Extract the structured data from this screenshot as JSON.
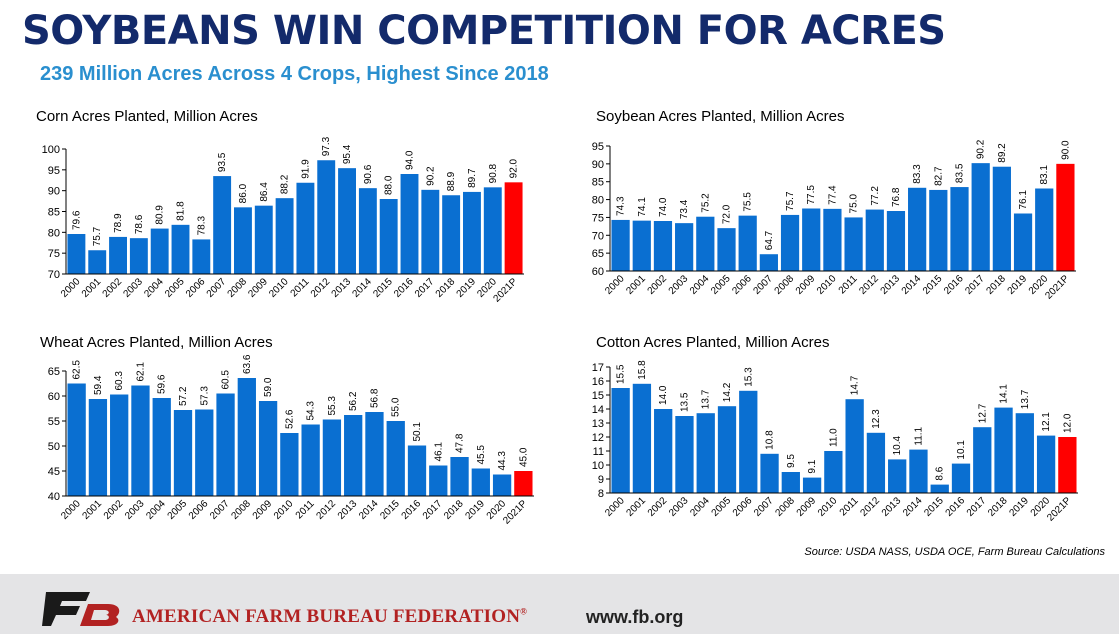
{
  "page": {
    "title": "SOYBEANS WIN COMPETITION FOR ACRES",
    "subtitle": "239 Million Acres Across 4 Crops, Highest Since 2018",
    "source": "Source: USDA NASS, USDA OCE, Farm Bureau Calculations",
    "footer_org": "American Farm Bureau Federation",
    "footer_url": "www.fb.org",
    "logo_text": "FB"
  },
  "colors": {
    "bar": "#0a6fd1",
    "highlight": "#ff0000",
    "title": "#132a6b",
    "subtitle": "#2a8fcf",
    "footer_bg": "#e4e4e6",
    "footer_org": "#b22222"
  },
  "chart_data": [
    {
      "type": "bar",
      "title": "Corn Acres Planted, Million Acres",
      "categories": [
        "2000",
        "2001",
        "2002",
        "2003",
        "2004",
        "2005",
        "2006",
        "2007",
        "2008",
        "2009",
        "2010",
        "2011",
        "2012",
        "2013",
        "2014",
        "2015",
        "2016",
        "2017",
        "2018",
        "2019",
        "2020",
        "2021P"
      ],
      "values": [
        79.6,
        75.7,
        78.9,
        78.6,
        80.9,
        81.8,
        78.3,
        93.5,
        86.0,
        86.4,
        88.2,
        91.9,
        97.3,
        95.4,
        90.6,
        88.0,
        94.0,
        90.2,
        88.9,
        89.7,
        90.8,
        92.0
      ],
      "labels": [
        "79.6",
        "75.7",
        "78.9",
        "78.6",
        "80.9",
        "81.8",
        "78.3",
        "93.5",
        "86.0",
        "86.4",
        "88.2",
        "91.9",
        "97.3",
        "95.4",
        "90.6",
        "88.0",
        "94.0",
        "90.2",
        "88.9",
        "89.7",
        "90.8",
        "92.0"
      ],
      "highlight": "2021P",
      "ylim": [
        70,
        100
      ],
      "yticks": [
        70,
        75,
        80,
        85,
        90,
        95,
        100
      ],
      "grid": false
    },
    {
      "type": "bar",
      "title": "Soybean Acres Planted, Million Acres",
      "categories": [
        "2000",
        "2001",
        "2002",
        "2003",
        "2004",
        "2005",
        "2006",
        "2007",
        "2008",
        "2009",
        "2010",
        "2011",
        "2012",
        "2013",
        "2014",
        "2015",
        "2016",
        "2017",
        "2018",
        "2019",
        "2020",
        "2021P"
      ],
      "values": [
        74.3,
        74.1,
        74.0,
        73.4,
        75.2,
        72.0,
        75.5,
        64.7,
        75.7,
        77.5,
        77.4,
        75.0,
        77.2,
        76.8,
        83.3,
        82.7,
        83.5,
        90.2,
        89.2,
        76.1,
        83.1,
        90.0
      ],
      "labels": [
        "74.3",
        "74.1",
        "74.0",
        "73.4",
        "75.2",
        "72.0",
        "75.5",
        "64.7",
        "75.7",
        "77.5",
        "77.4",
        "75.0",
        "77.2",
        "76.8",
        "83.3",
        "82.7",
        "83.5",
        "90.2",
        "89.2",
        "76.1",
        "83.1",
        "90.0"
      ],
      "highlight": "2021P",
      "ylim": [
        60,
        95
      ],
      "yticks": [
        60,
        65,
        70,
        75,
        80,
        85,
        90,
        95
      ],
      "grid": false
    },
    {
      "type": "bar",
      "title": "Wheat Acres Planted, Million Acres",
      "categories": [
        "2000",
        "2001",
        "2002",
        "2003",
        "2004",
        "2005",
        "2006",
        "2007",
        "2008",
        "2009",
        "2010",
        "2011",
        "2012",
        "2013",
        "2014",
        "2015",
        "2016",
        "2017",
        "2018",
        "2019",
        "2020",
        "2021P"
      ],
      "values": [
        62.5,
        59.4,
        60.3,
        62.1,
        59.6,
        57.2,
        57.3,
        60.5,
        63.6,
        59.0,
        52.6,
        54.3,
        55.3,
        56.2,
        56.8,
        55.0,
        50.1,
        46.1,
        47.8,
        45.5,
        44.3,
        45.0
      ],
      "labels": [
        "62.5",
        "59.4",
        "60.3",
        "62.1",
        "59.6",
        "57.2",
        "57.3",
        "60.5",
        "63.6",
        "59.0",
        "52.6",
        "54.3",
        "55.3",
        "56.2",
        "56.8",
        "55.0",
        "50.1",
        "46.1",
        "47.8",
        "45.5",
        "44.3",
        "45.0"
      ],
      "highlight": "2021P",
      "ylim": [
        40,
        65
      ],
      "yticks": [
        40,
        45,
        50,
        55,
        60,
        65
      ],
      "grid": false
    },
    {
      "type": "bar",
      "title": "Cotton Acres Planted, Million Acres",
      "categories": [
        "2000",
        "2001",
        "2002",
        "2003",
        "2004",
        "2005",
        "2006",
        "2007",
        "2008",
        "2009",
        "2010",
        "2011",
        "2012",
        "2013",
        "2014",
        "2015",
        "2016",
        "2017",
        "2018",
        "2019",
        "2020",
        "2021P"
      ],
      "values": [
        15.5,
        15.8,
        14.0,
        13.5,
        13.7,
        14.2,
        15.3,
        10.8,
        9.5,
        9.1,
        11.0,
        14.7,
        12.3,
        10.4,
        11.1,
        8.6,
        10.1,
        12.7,
        14.1,
        13.7,
        12.1,
        12.0
      ],
      "labels": [
        "15.5",
        "15.8",
        "14.0",
        "13.5",
        "13.7",
        "14.2",
        "15.3",
        "10.8",
        "9.5",
        "9.1",
        "11.0",
        "14.7",
        "12.3",
        "10.4",
        "11.1",
        "8.6",
        "10.1",
        "12.7",
        "14.1",
        "13.7",
        "12.1",
        "12.0"
      ],
      "highlight": "2021P",
      "ylim": [
        8,
        17
      ],
      "yticks": [
        8,
        9,
        10,
        11,
        12,
        13,
        14,
        15,
        16,
        17
      ],
      "grid": false
    }
  ]
}
